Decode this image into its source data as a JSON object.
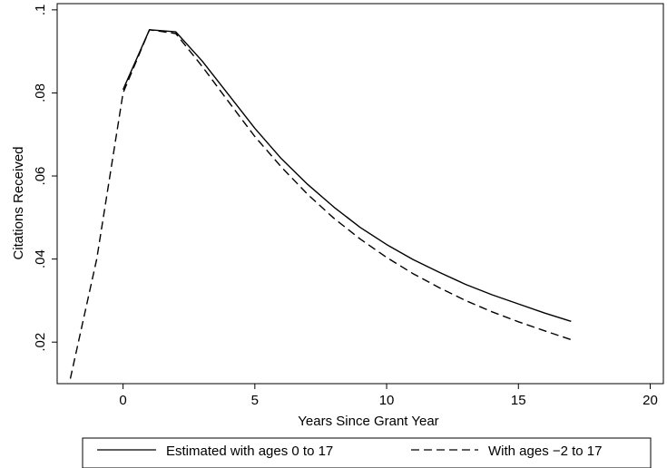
{
  "chart_data": {
    "type": "line",
    "title": "",
    "xlabel": "Years Since Grant  Year",
    "ylabel": "Citations Received",
    "xlim": [
      -2.5,
      20.5
    ],
    "ylim": [
      0.01,
      0.1015
    ],
    "xticks": [
      0,
      5,
      10,
      15,
      20
    ],
    "xtick_labels": [
      "0",
      "5",
      "10",
      "15",
      "20"
    ],
    "yticks": [
      0.02,
      0.04,
      0.06,
      0.08,
      0.1
    ],
    "ytick_labels": [
      ".02",
      ".04",
      ".06",
      ".08",
      ".1"
    ],
    "grid": false,
    "legend_position": "bottom",
    "series": [
      {
        "name": "Estimated with ages 0 to 17",
        "style": "solid",
        "color": "#000000",
        "x": [
          0,
          1,
          2,
          3,
          4,
          5,
          6,
          7,
          8,
          9,
          10,
          11,
          12,
          13,
          14,
          15,
          16,
          17
        ],
        "y": [
          0.0808,
          0.0952,
          0.0947,
          0.0877,
          0.0796,
          0.0715,
          0.0642,
          0.058,
          0.0525,
          0.0476,
          0.0435,
          0.0399,
          0.0368,
          0.0339,
          0.0314,
          0.0292,
          0.027,
          0.025
        ]
      },
      {
        "name": "With ages −2 to 17",
        "style": "dashed",
        "color": "#000000",
        "x": [
          -2,
          -1,
          0,
          1,
          2,
          3,
          4,
          5,
          6,
          7,
          8,
          9,
          10,
          11,
          12,
          13,
          14,
          15,
          16,
          17
        ],
        "y": [
          0.0112,
          0.04,
          0.08,
          0.0952,
          0.0943,
          0.0864,
          0.0779,
          0.0695,
          0.0622,
          0.0556,
          0.0498,
          0.0448,
          0.0404,
          0.0365,
          0.0331,
          0.03,
          0.0273,
          0.0249,
          0.0227,
          0.0206
        ]
      }
    ]
  }
}
